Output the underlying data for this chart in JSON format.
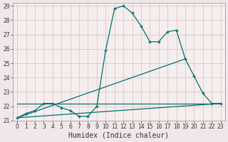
{
  "xlabel": "Humidex (Indice chaleur)",
  "ylabel": "",
  "background_color": "#f0e8e8",
  "plot_bg_color": "#f5eeee",
  "grid_color": "#e8c8c8",
  "line_color": "#007070",
  "xlim": [
    -0.5,
    23.5
  ],
  "ylim": [
    21.0,
    29.2
  ],
  "xticks": [
    0,
    1,
    2,
    3,
    4,
    5,
    6,
    7,
    8,
    9,
    10,
    11,
    12,
    13,
    14,
    15,
    16,
    17,
    18,
    19,
    20,
    21,
    22,
    23
  ],
  "yticks": [
    21,
    22,
    23,
    24,
    25,
    26,
    27,
    28,
    29
  ],
  "series1_x": [
    0,
    1,
    2,
    3,
    4,
    5,
    6,
    7,
    8,
    9,
    10,
    11,
    12,
    13,
    14,
    15,
    16,
    17,
    18,
    19,
    20,
    21,
    22,
    23
  ],
  "series1_y": [
    21.2,
    21.5,
    21.7,
    22.2,
    22.2,
    21.9,
    21.7,
    21.3,
    21.3,
    22.0,
    25.9,
    28.8,
    29.0,
    28.5,
    27.6,
    26.5,
    26.5,
    27.2,
    27.3,
    25.3,
    24.1,
    22.9,
    22.2,
    22.2
  ],
  "series2_x": [
    0,
    23
  ],
  "series2_y": [
    21.2,
    22.2
  ],
  "series3_x": [
    0,
    19
  ],
  "series3_y": [
    21.2,
    25.3
  ],
  "series4_x": [
    0,
    23
  ],
  "series4_y": [
    22.2,
    22.2
  ],
  "xlabel_fontsize": 7,
  "tick_fontsize": 5.5
}
